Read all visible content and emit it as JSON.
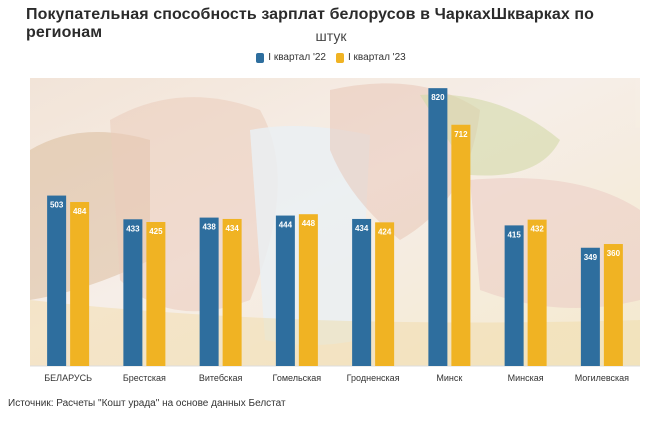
{
  "title": "Покупательная способность зарплат белорусов в ЧаркахШкварках по регионам",
  "subtitle": "штук",
  "colors": {
    "series_2022": "#2e6e9e",
    "series_2023": "#f0b323",
    "label_text": "#ffffff"
  },
  "legend": [
    {
      "name": "I квартал '22",
      "color": "#2e6e9e"
    },
    {
      "name": "I квартал '23",
      "color": "#f0b323"
    }
  ],
  "source": "Источник: Расчеты \"Кошт урада\" на основе данных Белстат",
  "chart_data": {
    "type": "bar",
    "title": "Покупательная способность зарплат белорусов в ЧаркахШкварках по регионам",
    "ylabel": "штук",
    "categories": [
      "БЕЛАРУСЬ",
      "Брестская",
      "Витебская",
      "Гомельская",
      "Гродненская",
      "Минск",
      "Минская",
      "Могилевская"
    ],
    "series": [
      {
        "name": "I квартал '22",
        "values": [
          503,
          433,
          438,
          444,
          434,
          820,
          415,
          349
        ]
      },
      {
        "name": "I квартал '23",
        "values": [
          484,
          425,
          434,
          448,
          424,
          712,
          432,
          360
        ]
      }
    ],
    "ylim": [
      0,
      850
    ],
    "grid": false,
    "legend_position": "top-center"
  }
}
